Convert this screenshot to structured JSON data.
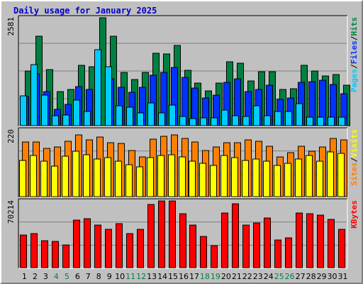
{
  "title": "Daily usage for January 2025",
  "colors": {
    "pages": "#00ccff",
    "files": "#0033ff",
    "hits": "#008040",
    "sites": "#ffff00",
    "visits": "#ff8000",
    "kbytes": "#ff0000",
    "background": "#c0c0c0",
    "weekend_label": "#008040",
    "weekday_label": "#000000"
  },
  "chart_data": [
    {
      "type": "bar",
      "panel": "hits-files-pages",
      "max_label": "2581",
      "right_label": [
        "Pages",
        "/",
        "Files",
        "/",
        "Hits"
      ],
      "right_label_colors": [
        "#00ccff",
        "#000000",
        "#0033ff",
        "#000000",
        "#008040"
      ],
      "categories": [
        "1",
        "2",
        "3",
        "4",
        "5",
        "6",
        "7",
        "8",
        "9",
        "10",
        "11",
        "12",
        "13",
        "14",
        "15",
        "16",
        "17",
        "18",
        "19",
        "20",
        "21",
        "22",
        "23",
        "24",
        "25",
        "26",
        "27",
        "28",
        "29",
        "30",
        "31"
      ],
      "weekend_days": [
        4,
        5,
        11,
        12,
        18,
        19,
        25,
        26
      ],
      "ylim": [
        0,
        2581
      ],
      "series": [
        {
          "name": "Hits",
          "color": "#008040",
          "values": [
            1305,
            2133,
            1337,
            811,
            863,
            1440,
            1415,
            2581,
            2140,
            1270,
            1108,
            1282,
            1736,
            1712,
            1917,
            1329,
            1026,
            826,
            1014,
            1521,
            1496,
            1064,
            1296,
            1296,
            865,
            875,
            1444,
            1311,
            1197,
            1224,
            968
          ]
        },
        {
          "name": "Files",
          "color": "#0033ff",
          "values": [
            693,
            1245,
            809,
            386,
            509,
            942,
            865,
            0,
            1124,
            911,
            791,
            917,
            1213,
            1281,
            1393,
            1160,
            905,
            656,
            734,
            1034,
            1126,
            823,
            866,
            962,
            625,
            655,
            1034,
            1050,
            1094,
            978,
            763
          ]
        },
        {
          "name": "Pages",
          "color": "#00ccff",
          "values": [
            714,
            1456,
            727,
            233,
            258,
            605,
            345,
            1811,
            1411,
            474,
            433,
            311,
            543,
            314,
            495,
            220,
            178,
            179,
            189,
            374,
            236,
            229,
            476,
            231,
            346,
            340,
            525,
            211,
            198,
            209,
            196
          ]
        }
      ]
    },
    {
      "type": "bar",
      "panel": "visits-sites",
      "max_label": "220",
      "right_label": [
        "Sites",
        "/",
        "Visits"
      ],
      "right_label_colors": [
        "#ff8000",
        "#000000",
        "#ffff00"
      ],
      "categories": [
        "1",
        "2",
        "3",
        "4",
        "5",
        "6",
        "7",
        "8",
        "9",
        "10",
        "11",
        "12",
        "13",
        "14",
        "15",
        "16",
        "17",
        "18",
        "19",
        "20",
        "21",
        "22",
        "23",
        "24",
        "25",
        "26",
        "27",
        "28",
        "29",
        "30",
        "31"
      ],
      "ylim": [
        0,
        220
      ],
      "series": [
        {
          "name": "Visits",
          "color": "#ff8000",
          "values": [
            180,
            181,
            160,
            164,
            183,
            204,
            188,
            196,
            178,
            176,
            152,
            130,
            190,
            198,
            203,
            192,
            180,
            151,
            163,
            177,
            178,
            188,
            183,
            167,
            132,
            145,
            167,
            150,
            164,
            192,
            188
          ]
        },
        {
          "name": "Sites",
          "color": "#ffff00",
          "values": [
            119,
            136,
            118,
            100,
            133,
            149,
            137,
            125,
            129,
            117,
            106,
            98,
            129,
            135,
            137,
            132,
            118,
            109,
            104,
            136,
            129,
            119,
            125,
            117,
            102,
            111,
            123,
            136,
            118,
            147,
            143
          ]
        }
      ]
    },
    {
      "type": "bar",
      "panel": "kbytes",
      "max_label": "70214",
      "right_label": [
        "KBytes"
      ],
      "right_label_colors": [
        "#ff0000"
      ],
      "categories": [
        "1",
        "2",
        "3",
        "4",
        "5",
        "6",
        "7",
        "8",
        "9",
        "10",
        "11",
        "12",
        "13",
        "14",
        "15",
        "16",
        "17",
        "18",
        "19",
        "20",
        "21",
        "22",
        "23",
        "24",
        "25",
        "26",
        "27",
        "28",
        "29",
        "30",
        "31"
      ],
      "ylim": [
        0,
        70214
      ],
      "series": [
        {
          "name": "KBytes",
          "color": "#ff0000",
          "values": [
            34000,
            35500,
            28700,
            27300,
            23700,
            50400,
            51700,
            44700,
            40400,
            46600,
            36000,
            40300,
            66500,
            70100,
            70214,
            56600,
            45100,
            33000,
            23400,
            57700,
            67200,
            44600,
            46800,
            52500,
            28800,
            31000,
            57200,
            56600,
            55500,
            50900,
            40700
          ]
        }
      ]
    }
  ]
}
